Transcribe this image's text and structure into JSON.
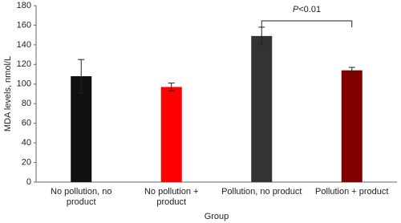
{
  "chart_data": {
    "type": "bar",
    "ylabel": "MDA levels, nmol/L",
    "xlabel": "Group",
    "categories": [
      "No pollution, no product",
      "No pollution + product",
      "Pollution, no product",
      "Pollution + product"
    ],
    "values": [
      108,
      97,
      149,
      114
    ],
    "errors": [
      17,
      4,
      9,
      3
    ],
    "colors": [
      "#111111",
      "#ff0000",
      "#333333",
      "#800000"
    ],
    "ylim": [
      0,
      180
    ],
    "yticks": [
      0,
      20,
      40,
      60,
      80,
      100,
      120,
      140,
      160,
      180
    ],
    "annotation": {
      "text": "P<0.01",
      "between": [
        2,
        3
      ]
    }
  }
}
